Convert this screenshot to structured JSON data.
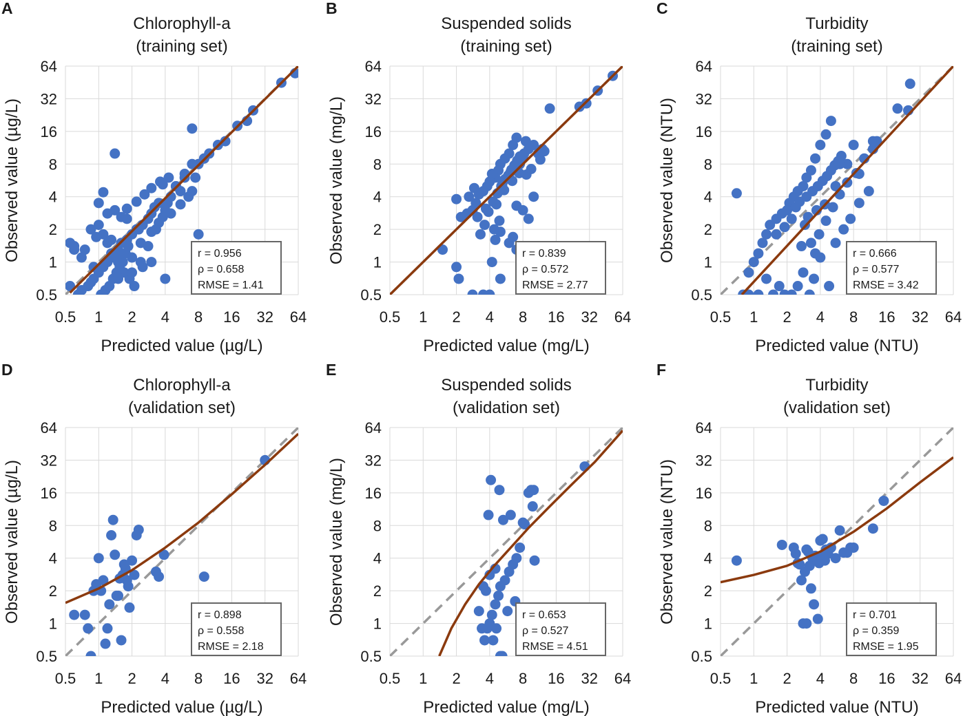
{
  "figure": {
    "panel_count": 6
  },
  "colors": {
    "point": "#4472C4",
    "fit": "#8B3A0E",
    "identity": "#999999",
    "grid": "#d9d9d9",
    "frame": "#666666"
  },
  "chart_data": [
    {
      "letter": "A",
      "type": "scatter",
      "title": [
        "Chlorophyll-a",
        "(training set)"
      ],
      "xlabel": "Predicted value (µg/L)",
      "ylabel": "Observed value (µg/L)",
      "ticks": [
        0.5,
        1,
        2,
        4,
        8,
        16,
        32,
        64
      ],
      "tick_labels": [
        "0.5",
        "1",
        "2",
        "4",
        "8",
        "16",
        "32",
        "64"
      ],
      "xlim": [
        0.5,
        64
      ],
      "ylim": [
        0.5,
        64
      ],
      "log_base": 2,
      "stats": [
        "r = 0.956",
        "ρ = 0.658",
        "RMSE = 1.41"
      ],
      "fit_curve": {
        "x": [
          0.55,
          64
        ],
        "y": [
          0.52,
          64
        ]
      },
      "identity_line": true,
      "points": {
        "x": [
          60,
          45,
          25,
          22,
          18,
          14,
          12,
          10,
          9,
          8,
          7,
          7.5,
          6,
          5,
          5.5,
          4.5,
          4,
          3.5,
          3.2,
          3,
          2.8,
          2.5,
          2.3,
          2,
          1.8,
          1.6,
          1.5,
          1.4,
          1.3,
          1.2,
          1.1,
          1,
          0.9,
          0.85,
          0.8,
          0.7,
          0.65,
          0.6,
          0.55,
          0.55,
          0.6,
          0.7,
          0.9,
          1.0,
          1.1,
          1.2,
          1.3,
          1.5,
          1.7,
          1.9,
          2.1,
          2.4,
          2.8,
          3.3,
          3.8,
          4.2,
          5,
          6,
          7,
          8,
          9,
          1.4,
          1.6,
          1.8,
          2.2,
          2.6,
          3,
          3.6,
          4.3,
          1.05,
          1.15,
          1.25,
          1.35,
          1.45,
          1.55,
          1.65,
          1.75,
          1.85,
          0.95,
          0.85,
          0.75,
          1.5,
          2,
          2.5,
          3,
          4,
          7,
          1.4,
          1.8,
          2.2,
          1.0,
          1.2,
          1.3,
          1.6,
          2.0,
          2.4,
          3.0,
          3.5,
          4.5,
          5.5,
          6.5,
          3.8,
          1.1
        ],
        "y": [
          55,
          45,
          25,
          20,
          18,
          13,
          12,
          10,
          9,
          8,
          17,
          6,
          6,
          5,
          4.5,
          4,
          3,
          3.5,
          3.2,
          2.8,
          2.5,
          2.2,
          2,
          1.8,
          1.6,
          1.5,
          1.3,
          1.2,
          1.1,
          1,
          0.9,
          0.8,
          0.7,
          0.65,
          0.6,
          0.55,
          0.5,
          1.4,
          0.6,
          1.5,
          1.3,
          1.1,
          0.9,
          2.2,
          1.8,
          1.5,
          1.2,
          1.0,
          0.8,
          0.7,
          0.6,
          1.0,
          1.4,
          2.0,
          2.6,
          3.5,
          5,
          6.5,
          8,
          1.8,
          9,
          10,
          2.6,
          3.1,
          3.6,
          4.2,
          4.8,
          5.5,
          6.0,
          0.5,
          0.55,
          0.6,
          0.7,
          0.8,
          0.9,
          1.0,
          1.2,
          1.4,
          1.7,
          2.0,
          1.3,
          0.7,
          0.8,
          0.9,
          1.0,
          0.7,
          4.5,
          3,
          2.5,
          2.0,
          3.5,
          2.8,
          1.6,
          1.2,
          1.1,
          1.5,
          1.9,
          2.3,
          2.8,
          3.4,
          4.0,
          5.2,
          4.4
        ]
      }
    },
    {
      "letter": "B",
      "type": "scatter",
      "title": [
        "Suspended solids",
        "(training set)"
      ],
      "xlabel": "Predicted value (mg/L)",
      "ylabel": "Observed value (mg/L)",
      "ticks": [
        0.5,
        1,
        2,
        4,
        8,
        16,
        32,
        64
      ],
      "tick_labels": [
        "0.5",
        "1",
        "2",
        "4",
        "8",
        "16",
        "32",
        "64"
      ],
      "xlim": [
        0.5,
        64
      ],
      "ylim": [
        0.5,
        64
      ],
      "log_base": 2,
      "stats": [
        "r = 0.839",
        "ρ = 0.572",
        "RMSE = 2.77"
      ],
      "fit_curve": {
        "x": [
          0.5,
          64
        ],
        "y": [
          0.5,
          64
        ]
      },
      "identity_line": true,
      "points": {
        "x": [
          52,
          38,
          30,
          26,
          14,
          12,
          11,
          10,
          9,
          8,
          8.5,
          7.5,
          7,
          6.5,
          6,
          5.5,
          5,
          4.8,
          4.5,
          4.2,
          4,
          3.8,
          3.5,
          3.2,
          3,
          2.8,
          2.5,
          2.2,
          2,
          1.5,
          2,
          2.1,
          2.8,
          3.5,
          4,
          4.2,
          5,
          6.5,
          7,
          8,
          9,
          10,
          7,
          6,
          5,
          4.5,
          3.6,
          3.3,
          3.1,
          5.2,
          5.8,
          6.2,
          6.8,
          7.2,
          7.8,
          8.2,
          4.6,
          5.4,
          6.4,
          7.4,
          3.9,
          4.3,
          4.7,
          5.1,
          5.5,
          5.9,
          6.3,
          6.7,
          7.1,
          7.5,
          2.6,
          2.9,
          4.9,
          4.4,
          3.7,
          8.6,
          9.5,
          11.5,
          12.5
        ],
        "y": [
          52,
          38,
          29,
          27,
          26,
          11,
          10,
          12,
          11,
          9,
          13,
          8,
          14,
          12,
          10,
          9,
          8,
          7,
          6,
          6.5,
          5.5,
          5,
          4.5,
          4.2,
          3.5,
          3,
          2.8,
          2.6,
          3.8,
          1.3,
          0.9,
          0.7,
          0.5,
          0.5,
          0.5,
          1.0,
          0.7,
          1.7,
          3.3,
          3.0,
          2.5,
          4.0,
          1.3,
          1.5,
          1.9,
          1.6,
          2.2,
          1.8,
          2.6,
          5.2,
          6.0,
          6.8,
          7.5,
          8.2,
          9.0,
          10.0,
          3.4,
          4.6,
          5.6,
          6.6,
          2.9,
          3.6,
          4.3,
          5.0,
          5.8,
          6.3,
          7.1,
          7.8,
          8.6,
          9.4,
          4.0,
          4.8,
          2.4,
          2.0,
          3.1,
          6.4,
          7.2,
          8.8,
          10.5
        ]
      }
    },
    {
      "letter": "C",
      "type": "scatter",
      "title": [
        "Turbidity",
        "(training set)"
      ],
      "xlabel": "Predicted value (NTU)",
      "ylabel": "Observed value (NTU)",
      "ticks": [
        0.5,
        1,
        2,
        4,
        8,
        16,
        32,
        64
      ],
      "tick_labels": [
        "0.5",
        "1",
        "2",
        "4",
        "8",
        "16",
        "32",
        "64"
      ],
      "xlim": [
        0.5,
        64
      ],
      "ylim": [
        0.5,
        64
      ],
      "log_base": 2,
      "stats": [
        "r = 0.666",
        "ρ = 0.577",
        "RMSE = 3.42"
      ],
      "fit_curve": {
        "x": [
          0.78,
          64
        ],
        "y": [
          0.5,
          64
        ]
      },
      "identity_line": true,
      "points": {
        "x": [
          26,
          25,
          20,
          13,
          12,
          12,
          10,
          9,
          8,
          7,
          6,
          5.5,
          5,
          4.5,
          4,
          3.6,
          3.3,
          3,
          2.8,
          2.5,
          2.3,
          2.1,
          2,
          1.8,
          1.6,
          1.4,
          1.3,
          1.2,
          1.1,
          1.0,
          0.9,
          0.7,
          0.8,
          0.9,
          1.1,
          1.3,
          1.5,
          1.7,
          1.9,
          2.2,
          2.5,
          2.8,
          3.2,
          3.5,
          4.0,
          4.8,
          5.5,
          6.5,
          7.5,
          9,
          11,
          2.4,
          2.6,
          3.0,
          3.4,
          3.8,
          4.2,
          4.6,
          5.0,
          5.4,
          5.8,
          6.2,
          2.9,
          3.1,
          3.7,
          4.4,
          1.6,
          1.9,
          2.2,
          3.3,
          3.9,
          4.5,
          5.2,
          6.0,
          7.0,
          8.5,
          3.6,
          2.7
        ],
        "y": [
          44,
          25,
          26,
          13,
          11,
          13,
          9,
          6.5,
          12,
          8,
          8,
          5,
          20,
          15,
          12,
          9,
          7,
          6,
          5,
          4.5,
          4,
          3.5,
          3,
          2.8,
          2.5,
          2.2,
          1.8,
          1.5,
          1.2,
          1.0,
          0.5,
          4.3,
          0.5,
          0.8,
          0.5,
          0.7,
          0.5,
          0.6,
          0.5,
          0.5,
          0.6,
          0.8,
          0.5,
          0.7,
          1.1,
          0.6,
          1.5,
          2,
          2.5,
          3.5,
          4.5,
          3.2,
          3.6,
          4.0,
          4.5,
          5.0,
          5.6,
          6.2,
          7.0,
          7.8,
          8.5,
          9.5,
          2.2,
          2.6,
          3.0,
          3.4,
          1.8,
          2.1,
          2.5,
          1.5,
          1.8,
          2.4,
          3.2,
          4.2,
          5.4,
          6.6,
          1.2,
          1.4
        ]
      }
    },
    {
      "letter": "D",
      "type": "scatter",
      "title": [
        "Chlorophyll-a",
        "(validation set)"
      ],
      "xlabel": "Predicted value (µg/L)",
      "ylabel": "Observed value (µg/L)",
      "ticks": [
        0.5,
        1,
        2,
        4,
        8,
        16,
        32,
        64
      ],
      "tick_labels": [
        "0.5",
        "1",
        "2",
        "4",
        "8",
        "16",
        "32",
        "64"
      ],
      "xlim": [
        0.5,
        64
      ],
      "ylim": [
        0.5,
        64
      ],
      "log_base": 2,
      "stats": [
        "r = 0.898",
        "ρ = 0.558",
        "RMSE = 2.18"
      ],
      "fit_curve": {
        "x": [
          0.5,
          1,
          2,
          4,
          8,
          16,
          32,
          64
        ],
        "y": [
          1.55,
          2.1,
          3.1,
          5.0,
          8.5,
          15.5,
          29,
          56
        ]
      },
      "identity_line": true,
      "points": {
        "x": [
          32,
          9,
          3.9,
          3.5,
          3.3,
          2.3,
          2.2,
          2.0,
          1.9,
          1.8,
          1.7,
          1.6,
          1.5,
          1.4,
          1.3,
          1.2,
          1.1,
          1.0,
          0.95,
          0.8,
          0.75,
          0.6,
          0.85,
          1.05,
          1.25,
          1.45,
          1.65,
          1.85,
          1.35,
          1.15,
          0.9,
          1.75,
          2.1,
          1.55
        ],
        "y": [
          32,
          2.7,
          4.3,
          2.7,
          3.0,
          7.3,
          6.5,
          3.8,
          1.4,
          2.5,
          3.5,
          0.7,
          1.8,
          4.3,
          6.5,
          0.9,
          2.5,
          4,
          2.3,
          0.9,
          1.2,
          1.2,
          0.5,
          2.0,
          1.5,
          1.8,
          2.8,
          2.2,
          9.0,
          0.65,
          2.0,
          3.2,
          2.8,
          2.6
        ]
      }
    },
    {
      "letter": "E",
      "type": "scatter",
      "title": [
        "Suspended solids",
        "(validation set)"
      ],
      "xlabel": "Predicted value (mg/L)",
      "ylabel": "Observed value (mg/L)",
      "ticks": [
        0.5,
        1,
        2,
        4,
        8,
        16,
        32,
        64
      ],
      "tick_labels": [
        "0.5",
        "1",
        "2",
        "4",
        "8",
        "16",
        "32",
        "64"
      ],
      "xlim": [
        0.5,
        64
      ],
      "ylim": [
        0.5,
        64
      ],
      "log_base": 2,
      "stats": [
        "r = 0.653",
        "ρ = 0.527",
        "RMSE = 4.51"
      ],
      "fit_curve": {
        "x": [
          1.4,
          1.8,
          2.4,
          3.2,
          4.4,
          6.2,
          9,
          14,
          22,
          36,
          64
        ],
        "y": [
          0.5,
          0.9,
          1.5,
          2.3,
          3.4,
          5.0,
          7.6,
          12.0,
          19.0,
          31,
          60
        ]
      },
      "identity_line": true,
      "points": {
        "x": [
          29,
          10,
          9,
          8,
          7.5,
          7,
          6.5,
          6,
          5.5,
          5,
          4.8,
          4.5,
          4.2,
          4,
          3.8,
          3.6,
          3.4,
          3.2,
          3.5,
          4,
          4.5,
          5,
          5.2,
          4.6,
          4.3,
          5.8,
          6.2,
          9.5,
          9.8,
          8.3,
          10.2,
          4.1,
          3.9,
          5.3,
          6.8,
          4.9,
          3.7
        ],
        "y": [
          28,
          17,
          16,
          8.5,
          5,
          4,
          3.5,
          3,
          2.5,
          2.2,
          1.8,
          1.5,
          1.2,
          1.0,
          0.9,
          0.7,
          0.9,
          1.3,
          2.2,
          2.8,
          3.2,
          0.5,
          0.5,
          0.9,
          0.7,
          1.3,
          10,
          17,
          12,
          8.2,
          3.8,
          21,
          10,
          9,
          1.6,
          17,
          2.0
        ]
      }
    },
    {
      "letter": "F",
      "type": "scatter",
      "title": [
        "Turbidity",
        "(validation set)"
      ],
      "xlabel": "Predicted value (NTU)",
      "ylabel": "Observed value (NTU)",
      "ticks": [
        0.5,
        1,
        2,
        4,
        8,
        16,
        32,
        64
      ],
      "tick_labels": [
        "0.5",
        "1",
        "2",
        "4",
        "8",
        "16",
        "32",
        "64"
      ],
      "xlim": [
        0.5,
        64
      ],
      "ylim": [
        0.5,
        64
      ],
      "log_base": 2,
      "stats": [
        "r = 0.701",
        "ρ = 0.359",
        "RMSE = 1.95"
      ],
      "fit_curve": {
        "x": [
          0.5,
          1,
          2,
          4,
          8,
          16,
          32,
          64
        ],
        "y": [
          2.4,
          2.8,
          3.4,
          4.6,
          7.0,
          11.5,
          20,
          34
        ]
      },
      "identity_line": true,
      "points": {
        "x": [
          15,
          12,
          8,
          7.5,
          7,
          6.5,
          6,
          5.5,
          5,
          4.5,
          4.2,
          4,
          3.8,
          3.5,
          3.3,
          3,
          2.8,
          2.6,
          2.5,
          2.4,
          1.8,
          0.7,
          3.6,
          3.4,
          3.2,
          3.1,
          2.9,
          2.7,
          4.1,
          4.4,
          4.7,
          3.9,
          2.3,
          3.0
        ],
        "y": [
          13.5,
          7.5,
          5,
          5,
          4.5,
          4.5,
          7.2,
          4,
          5,
          4.8,
          6,
          5.8,
          1.1,
          1.5,
          2.1,
          1,
          1,
          3.5,
          3.6,
          4.4,
          5.3,
          3.8,
          4.2,
          4.0,
          3.4,
          4.6,
          3.0,
          2.5,
          4.2,
          3.8,
          4.4,
          3.6,
          5.0,
          4.8
        ]
      }
    }
  ]
}
